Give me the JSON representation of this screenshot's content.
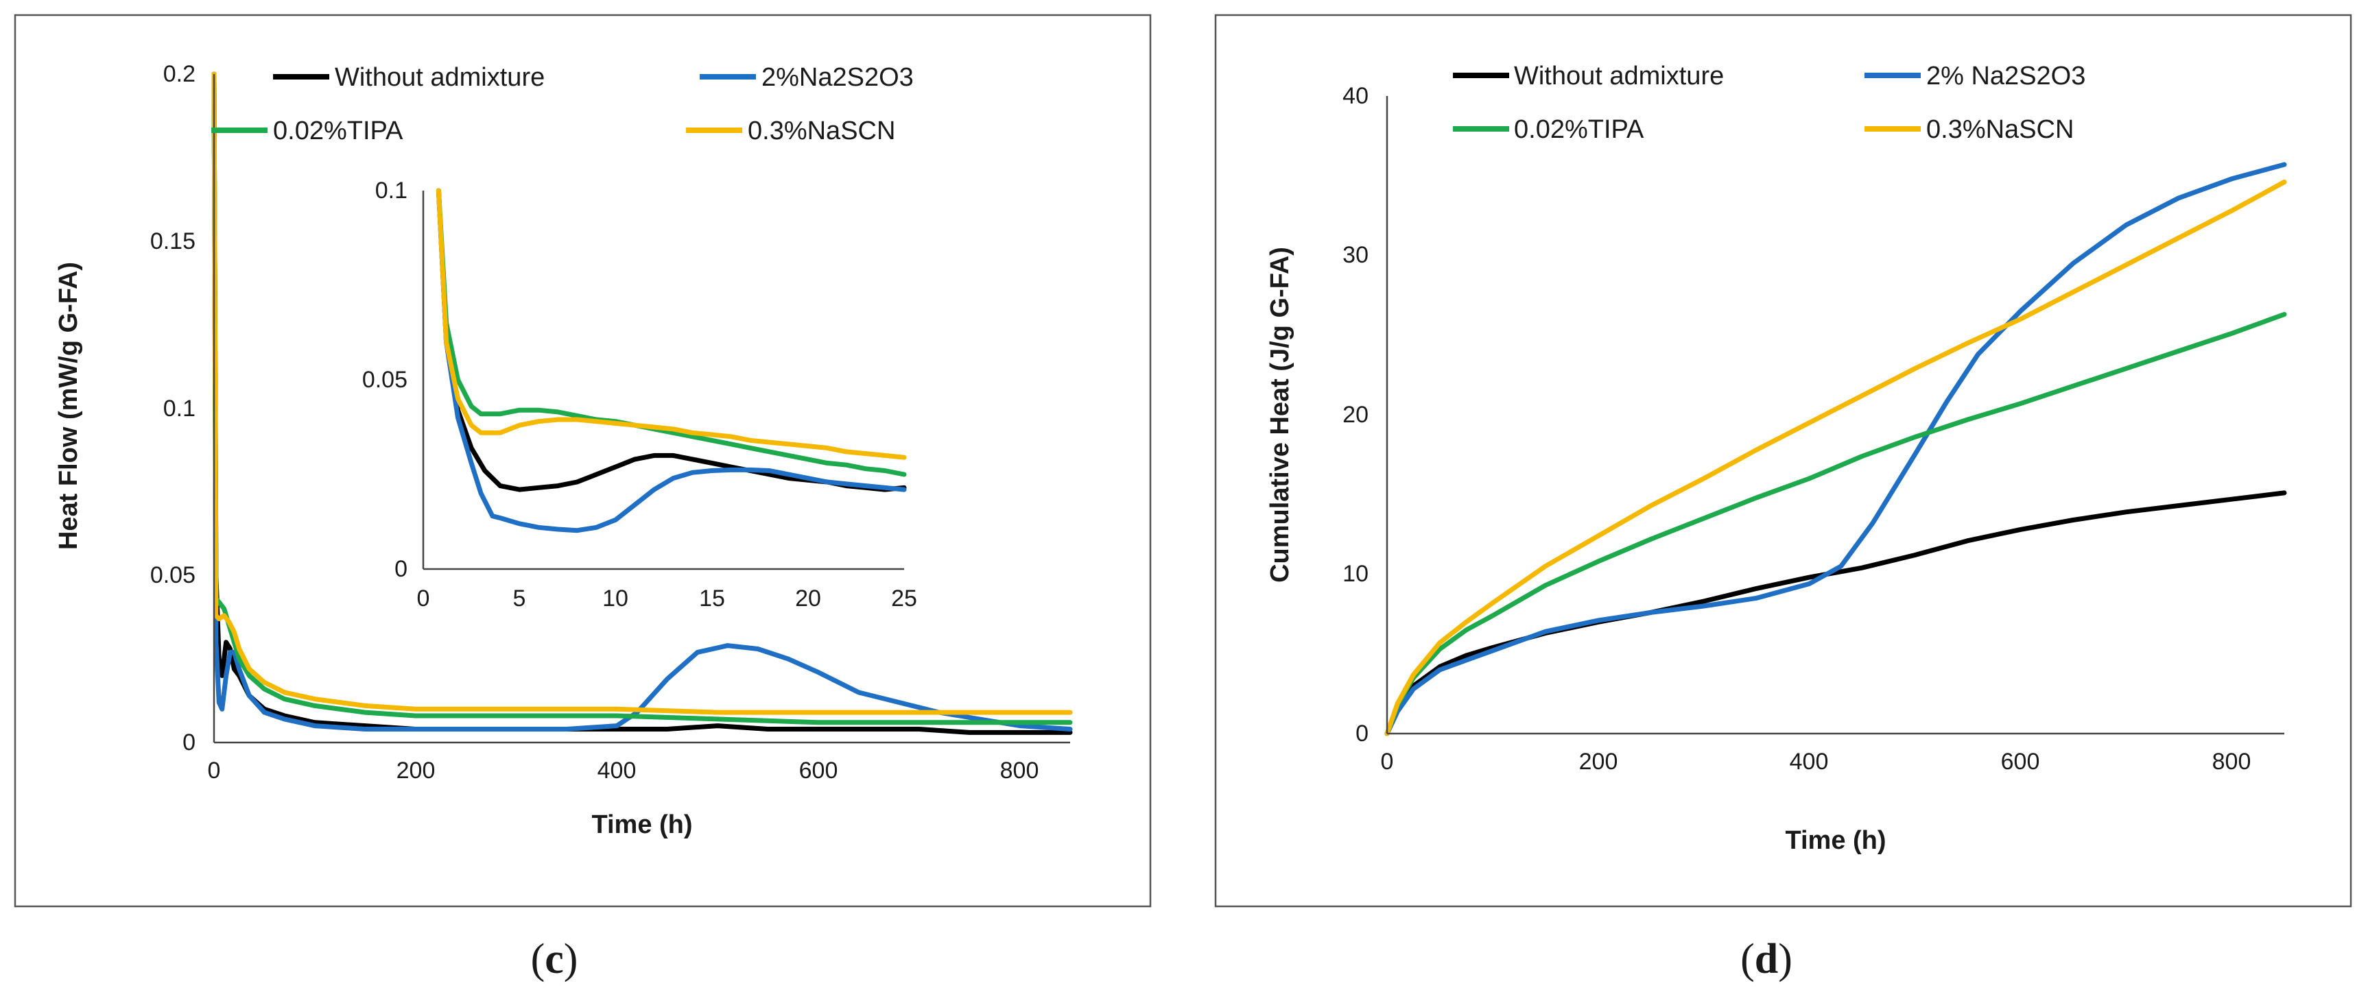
{
  "captions": [
    "(c)",
    "(d)"
  ],
  "caption_letters": [
    "c",
    "d"
  ],
  "colors": {
    "without": "#000000",
    "na2s2o3": "#1f6fc5",
    "tipa": "#1eaa4c",
    "nascn": "#f5b800"
  },
  "chart_data": [
    {
      "id": "c",
      "type": "line",
      "title": "",
      "xlabel": "Time (h)",
      "ylabel": "Heat Flow (mW/g G-FA)",
      "xlim": [
        0,
        850
      ],
      "ylim": [
        0,
        0.2
      ],
      "xticks": [
        "0",
        "200",
        "400",
        "600",
        "800"
      ],
      "yticks": [
        "0",
        "0.05",
        "0.1",
        "0.15",
        "0.2"
      ],
      "legend": [
        "Without admixture",
        "2%Na2S2O3",
        "0.02%TIPA",
        "0.3%NaSCN"
      ],
      "series": [
        {
          "name": "Without admixture",
          "x": [
            0,
            2,
            5,
            8,
            12,
            16,
            20,
            25,
            35,
            50,
            70,
            100,
            150,
            200,
            250,
            300,
            350,
            400,
            450,
            500,
            550,
            600,
            650,
            700,
            750,
            800,
            850
          ],
          "y": [
            0.2,
            0.05,
            0.025,
            0.02,
            0.03,
            0.028,
            0.022,
            0.02,
            0.014,
            0.01,
            0.008,
            0.006,
            0.005,
            0.004,
            0.004,
            0.004,
            0.004,
            0.004,
            0.004,
            0.005,
            0.004,
            0.004,
            0.004,
            0.004,
            0.003,
            0.003,
            0.003
          ]
        },
        {
          "name": "2%Na2S2O3",
          "x": [
            0,
            2,
            5,
            8,
            12,
            16,
            20,
            25,
            35,
            50,
            70,
            100,
            150,
            200,
            250,
            300,
            350,
            400,
            420,
            450,
            480,
            510,
            540,
            570,
            600,
            640,
            680,
            720,
            760,
            800,
            850
          ],
          "y": [
            0.2,
            0.03,
            0.012,
            0.01,
            0.02,
            0.027,
            0.027,
            0.022,
            0.014,
            0.009,
            0.007,
            0.005,
            0.004,
            0.004,
            0.004,
            0.004,
            0.004,
            0.005,
            0.009,
            0.019,
            0.027,
            0.029,
            0.028,
            0.025,
            0.021,
            0.015,
            0.012,
            0.009,
            0.007,
            0.005,
            0.004
          ]
        },
        {
          "name": "0.02%TIPA",
          "x": [
            0,
            2,
            5,
            10,
            15,
            20,
            25,
            35,
            50,
            70,
            100,
            150,
            200,
            300,
            400,
            500,
            600,
            700,
            800,
            850
          ],
          "y": [
            0.2,
            0.043,
            0.042,
            0.04,
            0.035,
            0.03,
            0.025,
            0.02,
            0.016,
            0.013,
            0.011,
            0.009,
            0.008,
            0.008,
            0.008,
            0.007,
            0.006,
            0.006,
            0.006,
            0.006
          ]
        },
        {
          "name": "0.3%NaSCN",
          "x": [
            0,
            2,
            5,
            10,
            15,
            20,
            25,
            35,
            50,
            70,
            100,
            150,
            200,
            300,
            400,
            500,
            600,
            700,
            800,
            850
          ],
          "y": [
            0.2,
            0.038,
            0.037,
            0.038,
            0.036,
            0.033,
            0.028,
            0.022,
            0.018,
            0.015,
            0.013,
            0.011,
            0.01,
            0.01,
            0.01,
            0.009,
            0.009,
            0.009,
            0.009,
            0.009
          ]
        }
      ],
      "inset": {
        "xlim": [
          0,
          25
        ],
        "ylim": [
          0,
          0.1
        ],
        "xticks": [
          "0",
          "5",
          "10",
          "15",
          "20",
          "25"
        ],
        "yticks": [
          "0",
          "0.05",
          "0.1"
        ],
        "series": [
          {
            "name": "Without admixture",
            "x": [
              0.8,
              1.2,
              1.8,
              2.5,
              3.2,
              4,
              5,
              6,
              7,
              8,
              9,
              10,
              11,
              12,
              13,
              14,
              15,
              16,
              17,
              18,
              19,
              20,
              21,
              22,
              23,
              24,
              25
            ],
            "y": [
              0.1,
              0.06,
              0.042,
              0.032,
              0.026,
              0.022,
              0.021,
              0.0215,
              0.022,
              0.023,
              0.025,
              0.027,
              0.029,
              0.03,
              0.03,
              0.029,
              0.028,
              0.027,
              0.026,
              0.025,
              0.024,
              0.0235,
              0.023,
              0.022,
              0.0215,
              0.021,
              0.0215
            ]
          },
          {
            "name": "2%Na2S2O3",
            "x": [
              0.8,
              1.2,
              1.8,
              2.5,
              3,
              3.6,
              4,
              5,
              6,
              7,
              8,
              9,
              10,
              11,
              12,
              13,
              14,
              15,
              16,
              17,
              18,
              19,
              20,
              21,
              22,
              23,
              24,
              25
            ],
            "y": [
              0.1,
              0.06,
              0.04,
              0.028,
              0.02,
              0.014,
              0.0135,
              0.012,
              0.011,
              0.0105,
              0.0102,
              0.011,
              0.013,
              0.017,
              0.021,
              0.024,
              0.0255,
              0.026,
              0.0262,
              0.0262,
              0.026,
              0.025,
              0.024,
              0.023,
              0.0225,
              0.022,
              0.0215,
              0.021
            ]
          },
          {
            "name": "0.02%TIPA",
            "x": [
              0.8,
              1.2,
              1.8,
              2.5,
              3,
              4,
              5,
              6,
              7,
              8,
              9,
              10,
              11,
              12,
              13,
              14,
              15,
              16,
              17,
              18,
              19,
              20,
              21,
              22,
              23,
              24,
              25
            ],
            "y": [
              0.1,
              0.065,
              0.05,
              0.043,
              0.041,
              0.041,
              0.042,
              0.042,
              0.0415,
              0.0405,
              0.0395,
              0.039,
              0.038,
              0.037,
              0.036,
              0.035,
              0.034,
              0.033,
              0.032,
              0.031,
              0.03,
              0.029,
              0.028,
              0.0275,
              0.0265,
              0.026,
              0.025
            ]
          },
          {
            "name": "0.3%NaSCN",
            "x": [
              0.8,
              1.2,
              1.8,
              2.5,
              3,
              4,
              5,
              6,
              7,
              8,
              9,
              10,
              11,
              12,
              13,
              14,
              15,
              16,
              17,
              18,
              19,
              20,
              21,
              22,
              23,
              24,
              25
            ],
            "y": [
              0.1,
              0.06,
              0.045,
              0.038,
              0.036,
              0.036,
              0.038,
              0.039,
              0.0395,
              0.0395,
              0.039,
              0.0385,
              0.038,
              0.0375,
              0.037,
              0.036,
              0.0355,
              0.035,
              0.034,
              0.0335,
              0.033,
              0.0325,
              0.032,
              0.031,
              0.0305,
              0.03,
              0.0295
            ]
          }
        ]
      }
    },
    {
      "id": "d",
      "type": "line",
      "title": "",
      "xlabel": "Time (h)",
      "ylabel": "Cumulative Heat (J/g G-FA)",
      "xlim": [
        0,
        850
      ],
      "ylim": [
        0,
        40
      ],
      "xticks": [
        "0",
        "200",
        "400",
        "600",
        "800"
      ],
      "yticks": [
        "0",
        "10",
        "20",
        "30",
        "40"
      ],
      "legend": [
        "Without admixture",
        "2% Na2S2O3",
        "0.02%TIPA",
        "0.3%NaSCN"
      ],
      "series": [
        {
          "name": "Without admixture",
          "x": [
            0,
            10,
            25,
            50,
            75,
            100,
            150,
            200,
            250,
            300,
            350,
            400,
            450,
            500,
            550,
            600,
            650,
            700,
            750,
            800,
            850
          ],
          "y": [
            0,
            1.5,
            3,
            4.2,
            4.9,
            5.4,
            6.3,
            7,
            7.6,
            8.3,
            9.1,
            9.8,
            10.4,
            11.2,
            12.1,
            12.8,
            13.4,
            13.9,
            14.3,
            14.7,
            15.1
          ]
        },
        {
          "name": "2% Na2S2O3",
          "x": [
            0,
            10,
            25,
            50,
            75,
            100,
            150,
            200,
            250,
            300,
            350,
            400,
            430,
            460,
            500,
            530,
            560,
            600,
            650,
            700,
            750,
            800,
            850
          ],
          "y": [
            0,
            1.4,
            2.8,
            4,
            4.6,
            5.2,
            6.4,
            7.1,
            7.6,
            8,
            8.5,
            9.4,
            10.5,
            13.2,
            17.5,
            20.8,
            23.8,
            26.5,
            29.5,
            31.9,
            33.6,
            34.8,
            35.7
          ]
        },
        {
          "name": "0.02%TIPA",
          "x": [
            0,
            10,
            25,
            50,
            75,
            100,
            150,
            200,
            250,
            300,
            350,
            400,
            450,
            500,
            550,
            600,
            650,
            700,
            750,
            800,
            850
          ],
          "y": [
            0,
            1.8,
            3.5,
            5.3,
            6.5,
            7.4,
            9.3,
            10.8,
            12.2,
            13.5,
            14.8,
            16,
            17.4,
            18.6,
            19.7,
            20.7,
            21.8,
            22.9,
            24,
            25.1,
            26.3
          ]
        },
        {
          "name": "0.3%NaSCN",
          "x": [
            0,
            10,
            25,
            50,
            75,
            100,
            150,
            200,
            250,
            300,
            350,
            400,
            450,
            500,
            550,
            600,
            650,
            700,
            750,
            800,
            850
          ],
          "y": [
            0,
            1.9,
            3.7,
            5.7,
            7,
            8.2,
            10.5,
            12.4,
            14.3,
            16,
            17.8,
            19.5,
            21.2,
            22.9,
            24.5,
            26,
            27.7,
            29.4,
            31.1,
            32.8,
            34.6
          ]
        }
      ]
    }
  ]
}
